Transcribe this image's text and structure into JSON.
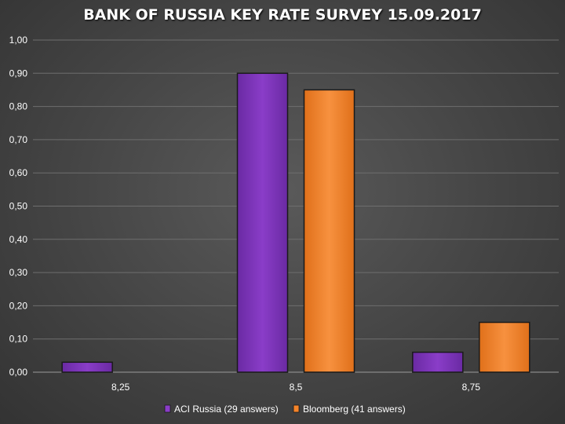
{
  "chart_data": {
    "type": "bar",
    "title": "BANK OF RUSSIA KEY RATE SURVEY 15.09.2017",
    "categories": [
      "8,25",
      "8,5",
      "8,75"
    ],
    "series": [
      {
        "name": "ACI Russia (29 answers)",
        "values": [
          0.03,
          0.9,
          0.06
        ],
        "color": "#8a3dc8"
      },
      {
        "name": "Bloomberg (41 answers)",
        "values": [
          0.0,
          0.85,
          0.15
        ],
        "color": "#f5842a"
      }
    ],
    "ylim": [
      0,
      1.0
    ],
    "yticks": [
      "0,00",
      "0,10",
      "0,20",
      "0,30",
      "0,40",
      "0,50",
      "0,60",
      "0,70",
      "0,80",
      "0,90",
      "1,00"
    ],
    "grid": true,
    "legend": "bottom",
    "background_color": "#444444"
  }
}
